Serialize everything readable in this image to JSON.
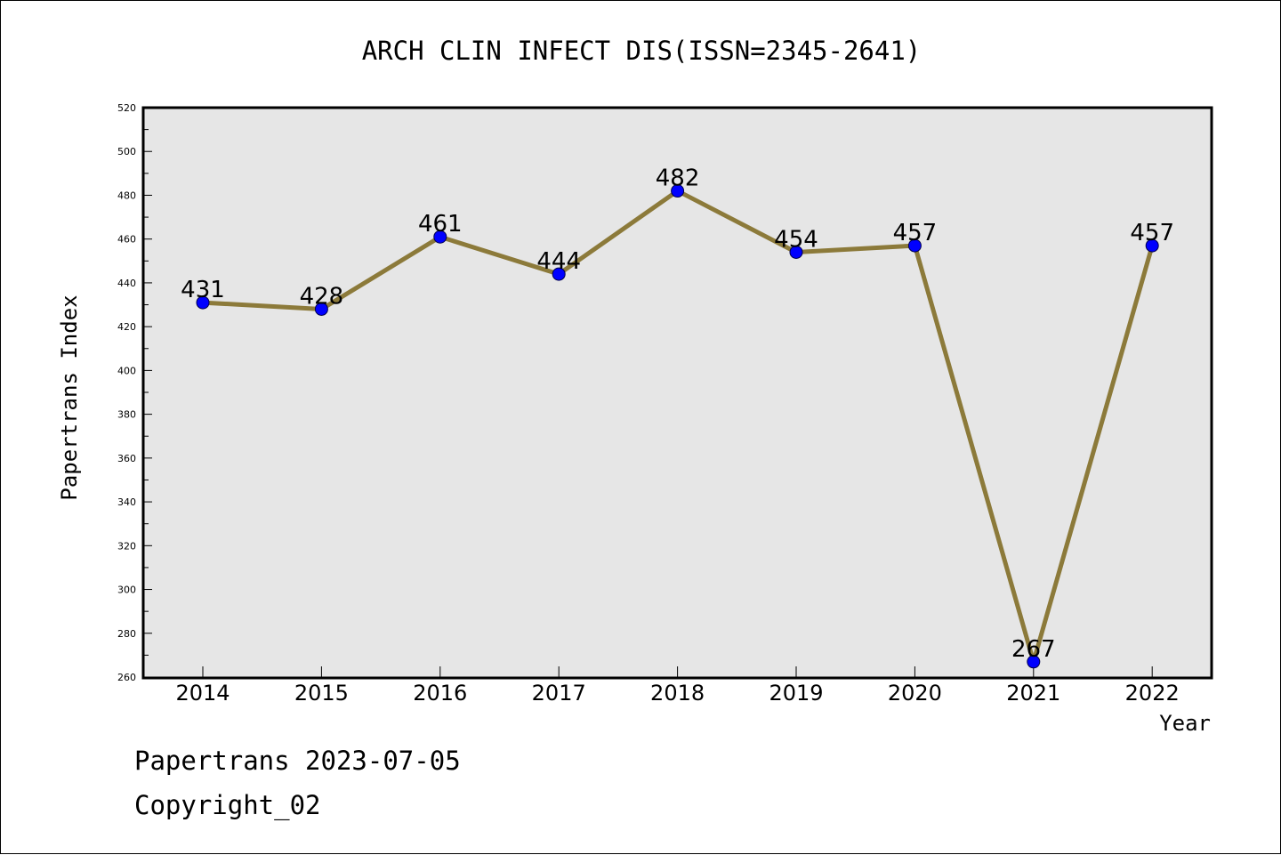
{
  "footer": {
    "line1": "Papertrans 2023-07-05",
    "line2": "Copyright_02"
  },
  "chart_data": {
    "type": "line",
    "title": "ARCH CLIN INFECT DIS(ISSN=2345-2641)",
    "xlabel": "Year",
    "ylabel": "Papertrans Index",
    "categories": [
      "2014",
      "2015",
      "2016",
      "2017",
      "2018",
      "2019",
      "2020",
      "2021",
      "2022"
    ],
    "series": [
      {
        "values": [
          431,
          428,
          461,
          444,
          482,
          454,
          457,
          267,
          457
        ]
      }
    ],
    "data_labels": [
      "431",
      "428",
      "461",
      "444",
      "482",
      "454",
      "457",
      "267",
      "457"
    ],
    "ylim": [
      260,
      520
    ],
    "yticks": [
      "260",
      "280",
      "300",
      "320",
      "340",
      "360",
      "380",
      "400",
      "420",
      "440",
      "460",
      "480",
      "500",
      "520"
    ],
    "grid": false,
    "legend": "none",
    "colors": {
      "plot_background": "#e6e6e6",
      "line": "#8c7a3a",
      "marker": "#0000ff",
      "axis": "#000000"
    }
  }
}
